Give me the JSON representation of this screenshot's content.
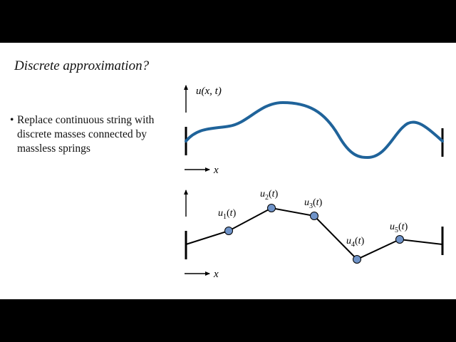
{
  "slide": {
    "title": "Discrete approximation?",
    "bullet": "Replace continuous string with discrete masses connected by massless springs"
  },
  "colors": {
    "string": "#1f639a",
    "mass_fill": "#6f93c8",
    "line": "#000000"
  },
  "continuous": {
    "y_label": "u(x, t)",
    "x_label": "x"
  },
  "discrete": {
    "x_label": "x",
    "masses": [
      "u1(t)",
      "u2(t)",
      "u3(t)",
      "u4(t)",
      "u5(t)"
    ]
  }
}
